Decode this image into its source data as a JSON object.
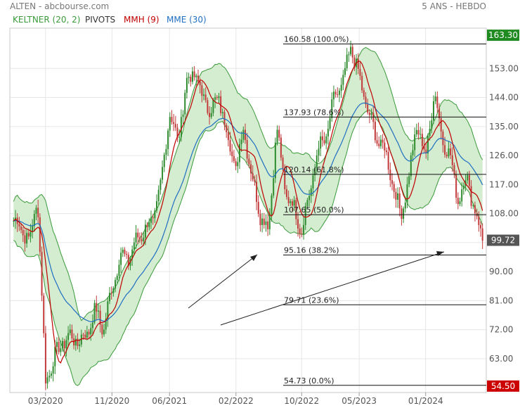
{
  "header": {
    "title": "ALTEN - abcbourse.com",
    "timeframe": "5 ANS - HEBDO"
  },
  "legend": [
    {
      "label": "KELTNER (20, 2)",
      "color": "#3a9a3a"
    },
    {
      "label": "PIVOTS",
      "color": "#333333"
    },
    {
      "label": "MMH (9)",
      "color": "#c00000"
    },
    {
      "label": "MME (30)",
      "color": "#1f6fc2"
    }
  ],
  "price_tags": [
    {
      "value": "163.30",
      "bg": "#1f8a1f"
    },
    {
      "value": "99.72",
      "bg": "#555555"
    },
    {
      "value": "54.50",
      "bg": "#cc0000"
    }
  ],
  "chart_data": {
    "type": "line",
    "title": "ALTEN - abcbourse.com",
    "subtitle": "5 ANS - HEBDO",
    "y_ticks": [
      63,
      72,
      81,
      90,
      99,
      108,
      117,
      126,
      135,
      144,
      153
    ],
    "y_tick_labels": [
      "63.00",
      "72.00",
      "81.00",
      "90.00",
      "99.00",
      "108.00",
      "117.00",
      "126.00",
      "135.00",
      "144.00",
      "153.00"
    ],
    "ylim": [
      52.5,
      165.5
    ],
    "x_ticks": [
      "03/2020",
      "11/2020",
      "06/2021",
      "02/2022",
      "10/2022",
      "05/2023",
      "01/2024"
    ],
    "price_path": [
      [
        "2019-11",
        106
      ],
      [
        "2019-12",
        104
      ],
      [
        "2020-01",
        99
      ],
      [
        "2020-02",
        113
      ],
      [
        "2020-03",
        56
      ],
      [
        "2020-04",
        63
      ],
      [
        "2020-05",
        68
      ],
      [
        "2020-06",
        70
      ],
      [
        "2020-07",
        68
      ],
      [
        "2020-08",
        71
      ],
      [
        "2020-09",
        78
      ],
      [
        "2020-10",
        72
      ],
      [
        "2020-11",
        85
      ],
      [
        "2020-12",
        95
      ],
      [
        "2021-01",
        94
      ],
      [
        "2021-02",
        100
      ],
      [
        "2021-03",
        103
      ],
      [
        "2021-04",
        106
      ],
      [
        "2021-05",
        117
      ],
      [
        "2021-06",
        140
      ],
      [
        "2021-07",
        130
      ],
      [
        "2021-08",
        148
      ],
      [
        "2021-09",
        152
      ],
      [
        "2021-10",
        144
      ],
      [
        "2021-11",
        140
      ],
      [
        "2021-12",
        144
      ],
      [
        "2022-01",
        132
      ],
      [
        "2022-02",
        122
      ],
      [
        "2022-03",
        135
      ],
      [
        "2022-04",
        119
      ],
      [
        "2022-05",
        108
      ],
      [
        "2022-06",
        103
      ],
      [
        "2022-07",
        135
      ],
      [
        "2022-08",
        115
      ],
      [
        "2022-09",
        110
      ],
      [
        "2022-10",
        103
      ],
      [
        "2022-11",
        115
      ],
      [
        "2022-12",
        128
      ],
      [
        "2023-01",
        132
      ],
      [
        "2023-02",
        145
      ],
      [
        "2023-03",
        148
      ],
      [
        "2023-04",
        160
      ],
      [
        "2023-05",
        150
      ],
      [
        "2023-06",
        140
      ],
      [
        "2023-07",
        132
      ],
      [
        "2023-08",
        128
      ],
      [
        "2023-09",
        118
      ],
      [
        "2023-10",
        107
      ],
      [
        "2023-11",
        120
      ],
      [
        "2023-12",
        136
      ],
      [
        "2024-01",
        125
      ],
      [
        "2024-02",
        146
      ],
      [
        "2024-03",
        132
      ],
      [
        "2024-04",
        125
      ],
      [
        "2024-05",
        112
      ],
      [
        "2024-06",
        120
      ],
      [
        "2024-07",
        108
      ],
      [
        "2024-08",
        100
      ]
    ],
    "series": [
      {
        "name": "KELTNER (20, 2)",
        "type": "band",
        "color": "#3a9a3a"
      },
      {
        "name": "MMH (9)",
        "type": "line",
        "color": "#c00000"
      },
      {
        "name": "MME (30)",
        "type": "line",
        "color": "#1f6fc2"
      }
    ],
    "fibonacci_levels": [
      {
        "value": 160.58,
        "label": "160.58  (100.0%)"
      },
      {
        "value": 137.93,
        "label": "137.93  (78.6%)"
      },
      {
        "value": 120.14,
        "label": "120.14  (61.8%)"
      },
      {
        "value": 107.65,
        "label": "107.65  (50.0%)"
      },
      {
        "value": 95.16,
        "label": "95.16  (38.2%)"
      },
      {
        "value": 79.71,
        "label": "79.71  (23.6%)"
      },
      {
        "value": 54.73,
        "label": "54.73  (0.0%)"
      }
    ],
    "last_close": 99.72,
    "period_high": 163.3,
    "period_low": 54.5,
    "grid": true
  }
}
